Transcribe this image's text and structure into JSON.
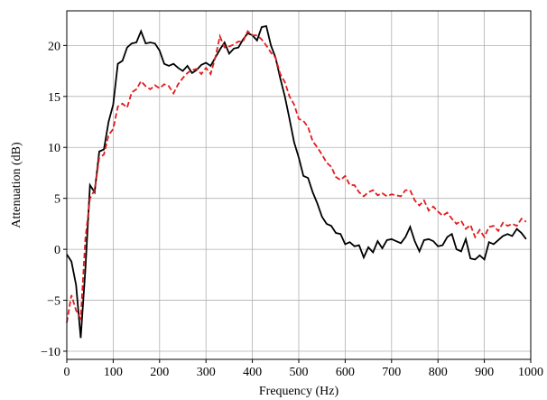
{
  "chart_data": {
    "type": "line",
    "xlabel": "Frequency (Hz)",
    "ylabel": "Attenuation (dB)",
    "x": [
      0,
      10,
      20,
      30,
      40,
      50,
      60,
      70,
      80,
      90,
      100,
      110,
      120,
      130,
      140,
      150,
      160,
      170,
      180,
      190,
      200,
      210,
      220,
      230,
      240,
      250,
      260,
      270,
      280,
      290,
      300,
      310,
      320,
      330,
      340,
      350,
      360,
      370,
      380,
      390,
      400,
      410,
      420,
      430,
      440,
      450,
      460,
      470,
      480,
      490,
      500,
      510,
      520,
      530,
      540,
      550,
      560,
      570,
      580,
      590,
      600,
      610,
      620,
      630,
      640,
      650,
      660,
      670,
      680,
      690,
      700,
      710,
      720,
      730,
      740,
      750,
      760,
      770,
      780,
      790,
      800,
      810,
      820,
      830,
      840,
      850,
      860,
      870,
      880,
      890,
      900,
      910,
      920,
      930,
      940,
      950,
      960,
      970,
      980,
      990
    ],
    "series": [
      {
        "color": "#000000",
        "dash": false,
        "values": [
          -0.5,
          -1.2,
          -3.5,
          -8.7,
          -2,
          6.3,
          5.6,
          9.6,
          9.8,
          12.5,
          14.2,
          18.2,
          18.5,
          19.8,
          20.2,
          20.3,
          21.4,
          20.2,
          20.3,
          20.2,
          19.5,
          18.2,
          18.0,
          18.2,
          17.8,
          17.5,
          18.0,
          17.3,
          17.6,
          18.1,
          18.3,
          18.0,
          18.8,
          19.6,
          20.3,
          19.2,
          19.7,
          19.8,
          20.6,
          21.2,
          21.0,
          20.5,
          21.8,
          21.9,
          20.0,
          18.8,
          16.8,
          15.0,
          12.8,
          10.5,
          9.0,
          7.2,
          7.0,
          5.6,
          4.5,
          3.2,
          2.5,
          2.3,
          1.6,
          1.5,
          0.5,
          0.7,
          0.3,
          0.4,
          -0.8,
          0.2,
          -0.3,
          0.8,
          0.1,
          0.9,
          1.0,
          0.8,
          0.6,
          1.2,
          2.2,
          0.8,
          -0.2,
          0.9,
          1.0,
          0.8,
          0.3,
          0.4,
          1.2,
          1.5,
          0.0,
          -0.2,
          1.0,
          -0.9,
          -1.0,
          -0.6,
          -1.0,
          0.7,
          0.5,
          0.9,
          1.3,
          1.5,
          1.3,
          2.0,
          1.6,
          1.0
        ]
      },
      {
        "color": "#e41a1c",
        "dash": true,
        "values": [
          -7.2,
          -4.5,
          -6.0,
          -6.8,
          1,
          5.0,
          5.8,
          9.0,
          9.3,
          11.2,
          11.8,
          14.0,
          14.3,
          13.9,
          15.4,
          15.7,
          16.5,
          16.0,
          15.7,
          16.1,
          15.8,
          16.2,
          16.0,
          15.3,
          16.2,
          16.8,
          17.3,
          17.6,
          17.7,
          17.2,
          17.8,
          17.2,
          18.8,
          20.9,
          19.8,
          19.9,
          20.1,
          20.4,
          20.4,
          21.4,
          21.0,
          21.0,
          20.6,
          20.0,
          19.3,
          18.8,
          17.2,
          16.4,
          15.0,
          14.2,
          12.8,
          12.6,
          12.0,
          10.6,
          10.0,
          9.3,
          8.5,
          8.1,
          7.1,
          6.8,
          7.2,
          6.3,
          6.3,
          5.6,
          5.2,
          5.6,
          5.8,
          5.3,
          5.5,
          5.2,
          5.4,
          5.3,
          5.2,
          5.8,
          5.8,
          4.8,
          4.3,
          4.8,
          3.8,
          4.2,
          3.7,
          3.3,
          3.6,
          3.0,
          2.5,
          2.8,
          2.0,
          2.4,
          1.2,
          1.9,
          1.2,
          2.2,
          2.3,
          1.8,
          2.6,
          2.3,
          2.5,
          2.3,
          3.0,
          2.7
        ]
      }
    ],
    "xlim": [
      0,
      1000
    ],
    "ylim": [
      -10.8,
      23.4
    ],
    "xticks": [
      0,
      100,
      200,
      300,
      400,
      500,
      600,
      700,
      800,
      900,
      1000
    ],
    "yticks": [
      {
        "value": -10,
        "label": "−10"
      },
      {
        "value": -5,
        "label": "−5"
      },
      0,
      5,
      10,
      15,
      20
    ],
    "grid": true
  }
}
